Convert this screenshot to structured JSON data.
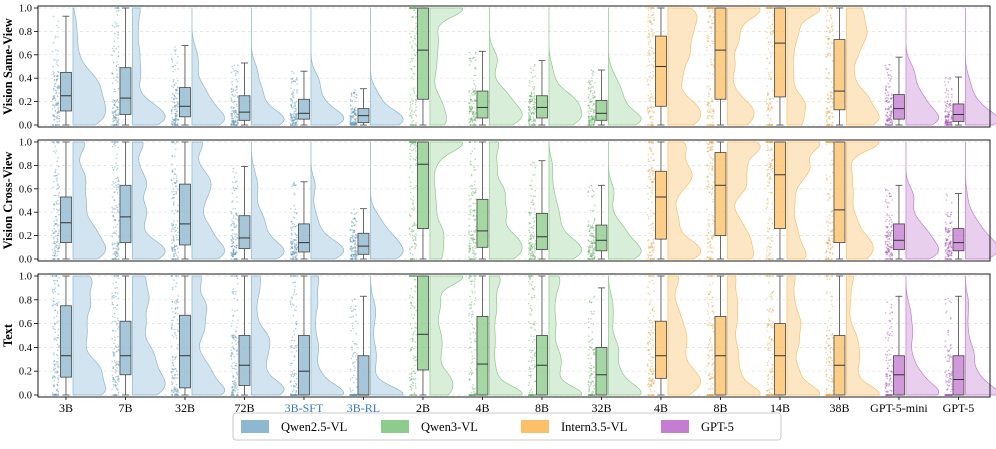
{
  "chart_data": {
    "type": "raincloud",
    "title": "",
    "ylim": [
      0,
      1
    ],
    "yticks": [
      "0.0",
      "0.2",
      "0.4",
      "0.6",
      "0.8",
      "1.0"
    ],
    "categories": [
      "3B",
      "7B",
      "32B",
      "72B",
      "3B-SFT",
      "3B-RL",
      "2B",
      "4B",
      "8B",
      "32B",
      "4B",
      "8B",
      "14B",
      "38B",
      "GPT-5-mini",
      "GPT-5"
    ],
    "category_family": [
      0,
      0,
      0,
      0,
      0,
      0,
      1,
      1,
      1,
      1,
      2,
      2,
      2,
      2,
      3,
      3
    ],
    "highlighted_categories": [
      4,
      5
    ],
    "highlight_color": "#3a78b8",
    "families": [
      {
        "name": "Qwen2.5-VL",
        "color": "#87b4cc",
        "light": "#cfe3ef",
        "dot": "#5f95b3",
        "line": "#4b7f99"
      },
      {
        "name": "Qwen3-VL",
        "color": "#86c986",
        "light": "#d6eed6",
        "dot": "#5fae5f",
        "line": "#4f944f"
      },
      {
        "name": "Intern3.5-VL",
        "color": "#fbbd60",
        "light": "#fde5c0",
        "dot": "#e6a23c",
        "line": "#d08a24"
      },
      {
        "name": "GPT-5",
        "color": "#c276cf",
        "light": "#e8cdee",
        "dot": "#a24fb2",
        "line": "#8f3f9e"
      }
    ],
    "panels": [
      {
        "ylabel": "Vision Same-View",
        "boxes": [
          {
            "q1": 0.12,
            "med": 0.25,
            "q3": 0.45,
            "wlo": 0.0,
            "whi": 0.93
          },
          {
            "q1": 0.09,
            "med": 0.23,
            "q3": 0.49,
            "wlo": 0.0,
            "whi": 1.0
          },
          {
            "q1": 0.07,
            "med": 0.16,
            "q3": 0.32,
            "wlo": 0.0,
            "whi": 0.68
          },
          {
            "q1": 0.04,
            "med": 0.11,
            "q3": 0.25,
            "wlo": 0.0,
            "whi": 0.53
          },
          {
            "q1": 0.05,
            "med": 0.1,
            "q3": 0.22,
            "wlo": 0.0,
            "whi": 0.46
          },
          {
            "q1": 0.02,
            "med": 0.08,
            "q3": 0.14,
            "wlo": 0.0,
            "whi": 0.31
          },
          {
            "q1": 0.22,
            "med": 0.64,
            "q3": 1.0,
            "wlo": 0.0,
            "whi": 1.0
          },
          {
            "q1": 0.06,
            "med": 0.15,
            "q3": 0.29,
            "wlo": 0.0,
            "whi": 0.63
          },
          {
            "q1": 0.06,
            "med": 0.15,
            "q3": 0.25,
            "wlo": 0.0,
            "whi": 0.55
          },
          {
            "q1": 0.04,
            "med": 0.1,
            "q3": 0.21,
            "wlo": 0.0,
            "whi": 0.47
          },
          {
            "q1": 0.16,
            "med": 0.5,
            "q3": 0.76,
            "wlo": 0.0,
            "whi": 1.0
          },
          {
            "q1": 0.22,
            "med": 0.64,
            "q3": 1.0,
            "wlo": 0.0,
            "whi": 1.0
          },
          {
            "q1": 0.24,
            "med": 0.7,
            "q3": 1.0,
            "wlo": 0.0,
            "whi": 1.0
          },
          {
            "q1": 0.13,
            "med": 0.29,
            "q3": 0.73,
            "wlo": 0.0,
            "whi": 1.0
          },
          {
            "q1": 0.05,
            "med": 0.14,
            "q3": 0.26,
            "wlo": 0.0,
            "whi": 0.58
          },
          {
            "q1": 0.03,
            "med": 0.09,
            "q3": 0.18,
            "wlo": 0.0,
            "whi": 0.41
          }
        ]
      },
      {
        "ylabel": "Vision Cross-View",
        "boxes": [
          {
            "q1": 0.14,
            "med": 0.31,
            "q3": 0.53,
            "wlo": 0.0,
            "whi": 1.0
          },
          {
            "q1": 0.14,
            "med": 0.36,
            "q3": 0.63,
            "wlo": 0.0,
            "whi": 1.0
          },
          {
            "q1": 0.12,
            "med": 0.3,
            "q3": 0.64,
            "wlo": 0.0,
            "whi": 1.0
          },
          {
            "q1": 0.09,
            "med": 0.18,
            "q3": 0.37,
            "wlo": 0.0,
            "whi": 0.79
          },
          {
            "q1": 0.06,
            "med": 0.14,
            "q3": 0.3,
            "wlo": 0.0,
            "whi": 0.66
          },
          {
            "q1": 0.04,
            "med": 0.11,
            "q3": 0.22,
            "wlo": 0.0,
            "whi": 0.43
          },
          {
            "q1": 0.26,
            "med": 0.81,
            "q3": 1.0,
            "wlo": 0.0,
            "whi": 1.0
          },
          {
            "q1": 0.1,
            "med": 0.24,
            "q3": 0.51,
            "wlo": 0.0,
            "whi": 1.0
          },
          {
            "q1": 0.08,
            "med": 0.19,
            "q3": 0.39,
            "wlo": 0.0,
            "whi": 0.84
          },
          {
            "q1": 0.07,
            "med": 0.16,
            "q3": 0.29,
            "wlo": 0.0,
            "whi": 0.63
          },
          {
            "q1": 0.17,
            "med": 0.53,
            "q3": 0.75,
            "wlo": 0.0,
            "whi": 1.0
          },
          {
            "q1": 0.2,
            "med": 0.63,
            "q3": 0.91,
            "wlo": 0.0,
            "whi": 1.0
          },
          {
            "q1": 0.26,
            "med": 0.72,
            "q3": 1.0,
            "wlo": 0.0,
            "whi": 1.0
          },
          {
            "q1": 0.14,
            "med": 0.42,
            "q3": 1.0,
            "wlo": 0.0,
            "whi": 1.0
          },
          {
            "q1": 0.08,
            "med": 0.16,
            "q3": 0.3,
            "wlo": 0.0,
            "whi": 0.63
          },
          {
            "q1": 0.07,
            "med": 0.14,
            "q3": 0.26,
            "wlo": 0.0,
            "whi": 0.56
          }
        ]
      },
      {
        "ylabel": "Text",
        "boxes": [
          {
            "q1": 0.15,
            "med": 0.33,
            "q3": 0.75,
            "wlo": 0.0,
            "whi": 1.0
          },
          {
            "q1": 0.17,
            "med": 0.33,
            "q3": 0.62,
            "wlo": 0.0,
            "whi": 1.0
          },
          {
            "q1": 0.06,
            "med": 0.33,
            "q3": 0.67,
            "wlo": 0.0,
            "whi": 1.0
          },
          {
            "q1": 0.08,
            "med": 0.25,
            "q3": 0.5,
            "wlo": 0.0,
            "whi": 1.0
          },
          {
            "q1": 0.0,
            "med": 0.2,
            "q3": 0.5,
            "wlo": 0.0,
            "whi": 1.0
          },
          {
            "q1": 0.0,
            "med": 0.0,
            "q3": 0.33,
            "wlo": 0.0,
            "whi": 0.83
          },
          {
            "q1": 0.21,
            "med": 0.51,
            "q3": 1.0,
            "wlo": 0.0,
            "whi": 1.0
          },
          {
            "q1": 0.0,
            "med": 0.26,
            "q3": 0.66,
            "wlo": 0.0,
            "whi": 1.0
          },
          {
            "q1": 0.0,
            "med": 0.25,
            "q3": 0.5,
            "wlo": 0.0,
            "whi": 1.0
          },
          {
            "q1": 0.0,
            "med": 0.17,
            "q3": 0.4,
            "wlo": 0.0,
            "whi": 0.9
          },
          {
            "q1": 0.14,
            "med": 0.33,
            "q3": 0.62,
            "wlo": 0.0,
            "whi": 1.0
          },
          {
            "q1": 0.0,
            "med": 0.33,
            "q3": 0.66,
            "wlo": 0.0,
            "whi": 1.0
          },
          {
            "q1": 0.0,
            "med": 0.33,
            "q3": 0.6,
            "wlo": 0.0,
            "whi": 1.0
          },
          {
            "q1": 0.0,
            "med": 0.25,
            "q3": 0.5,
            "wlo": 0.0,
            "whi": 1.0
          },
          {
            "q1": 0.0,
            "med": 0.17,
            "q3": 0.33,
            "wlo": 0.0,
            "whi": 0.83
          },
          {
            "q1": 0.0,
            "med": 0.13,
            "q3": 0.33,
            "wlo": 0.0,
            "whi": 0.83
          }
        ]
      }
    ],
    "legend": {
      "position": "bottom-center",
      "entries": [
        "Qwen2.5-VL",
        "Qwen3-VL",
        "Intern3.5-VL",
        "GPT-5"
      ]
    },
    "grid": "horizontal-dashed"
  }
}
